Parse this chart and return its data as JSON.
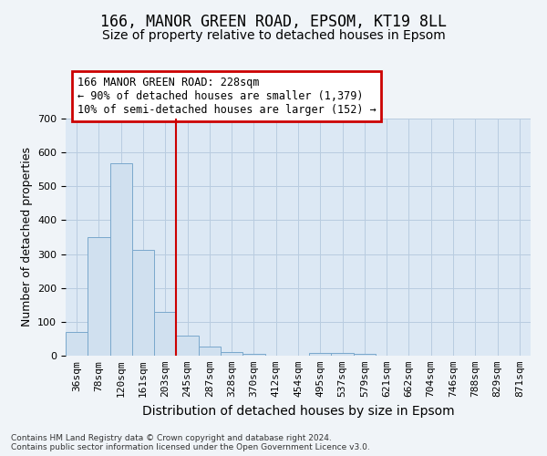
{
  "title1": "166, MANOR GREEN ROAD, EPSOM, KT19 8LL",
  "title2": "Size of property relative to detached houses in Epsom",
  "xlabel": "Distribution of detached houses by size in Epsom",
  "ylabel": "Number of detached properties",
  "footnote": "Contains HM Land Registry data © Crown copyright and database right 2024.\nContains public sector information licensed under the Open Government Licence v3.0.",
  "bar_labels": [
    "36sqm",
    "78sqm",
    "120sqm",
    "161sqm",
    "203sqm",
    "245sqm",
    "287sqm",
    "328sqm",
    "370sqm",
    "412sqm",
    "454sqm",
    "495sqm",
    "537sqm",
    "579sqm",
    "621sqm",
    "662sqm",
    "704sqm",
    "746sqm",
    "788sqm",
    "829sqm",
    "871sqm"
  ],
  "bar_heights": [
    70,
    350,
    568,
    312,
    130,
    58,
    28,
    12,
    5,
    0,
    0,
    8,
    8,
    5,
    0,
    0,
    0,
    0,
    0,
    0,
    0
  ],
  "bar_color": "#d0e0ef",
  "bar_edge_color": "#7aa8cc",
  "vline_color": "#cc0000",
  "annotation_text": "166 MANOR GREEN ROAD: 228sqm\n← 90% of detached houses are smaller (1,379)\n10% of semi-detached houses are larger (152) →",
  "annotation_box_color": "#cc0000",
  "ylim": [
    0,
    700
  ],
  "yticks": [
    0,
    100,
    200,
    300,
    400,
    500,
    600,
    700
  ],
  "bg_color": "#f0f4f8",
  "plot_bg_color": "#dce8f4",
  "grid_color": "#b8cce0",
  "title_fontsize": 12,
  "subtitle_fontsize": 10,
  "axis_label_fontsize": 9,
  "tick_fontsize": 8,
  "footnote_fontsize": 6.5
}
